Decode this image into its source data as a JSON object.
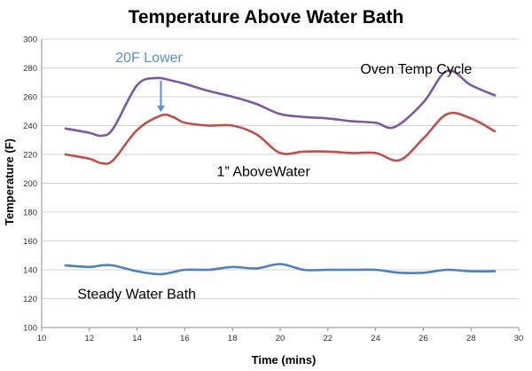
{
  "chart_data": {
    "type": "line",
    "title": "Temperature Above Water Bath",
    "xlabel": "Time (mins)",
    "ylabel": "Temperature (F)",
    "xlim": [
      10,
      30
    ],
    "ylim": [
      100,
      300
    ],
    "xticks": [
      10,
      12,
      14,
      16,
      18,
      20,
      22,
      24,
      26,
      28,
      30
    ],
    "yticks": [
      100,
      120,
      140,
      160,
      180,
      200,
      220,
      240,
      260,
      280,
      300
    ],
    "grid": "horizontal",
    "series": [
      {
        "name": "Oven Temp Cycle",
        "color": "#7b5b9e",
        "x": [
          11,
          12,
          12.5,
          13,
          14,
          14.8,
          15.5,
          16,
          17,
          18,
          19,
          20,
          21,
          22,
          23,
          24,
          24.8,
          26,
          27,
          28,
          29
        ],
        "y": [
          238,
          235,
          233,
          238,
          268,
          273,
          271,
          269,
          264,
          260,
          255,
          248,
          246,
          245,
          243,
          242,
          239,
          256,
          278,
          268,
          261
        ]
      },
      {
        "name": "1” AboveWater",
        "color": "#c0504d",
        "x": [
          11,
          12,
          12.5,
          13,
          14,
          15,
          15.5,
          16,
          17,
          18,
          19,
          20,
          21,
          22,
          23,
          24,
          25,
          26,
          27,
          28,
          29
        ],
        "y": [
          220,
          217,
          214,
          216,
          237,
          247,
          246,
          242,
          240,
          240,
          234,
          221,
          222,
          222,
          221,
          221,
          216,
          231,
          248,
          245,
          236
        ]
      },
      {
        "name": "Steady Water Bath",
        "color": "#4f81bd",
        "x": [
          11,
          12,
          12.5,
          13,
          14,
          15,
          16,
          17,
          18,
          19,
          20,
          21,
          22,
          23,
          24,
          25,
          26,
          27,
          28,
          29
        ],
        "y": [
          143,
          142,
          143,
          143,
          139,
          137,
          140,
          140,
          142,
          141,
          144,
          140,
          140,
          140,
          140,
          138,
          138,
          140,
          139,
          139
        ]
      }
    ],
    "annotations": [
      {
        "text": "Oven Temp Cycle",
        "series": 0
      },
      {
        "text": "1” AboveWater",
        "series": 1
      },
      {
        "text": "Steady Water Bath",
        "series": 2
      },
      {
        "text": "20F Lower",
        "color": "#5b8fd6",
        "arrow_x": 15,
        "arrow_from": 273,
        "arrow_to": 247
      }
    ]
  }
}
